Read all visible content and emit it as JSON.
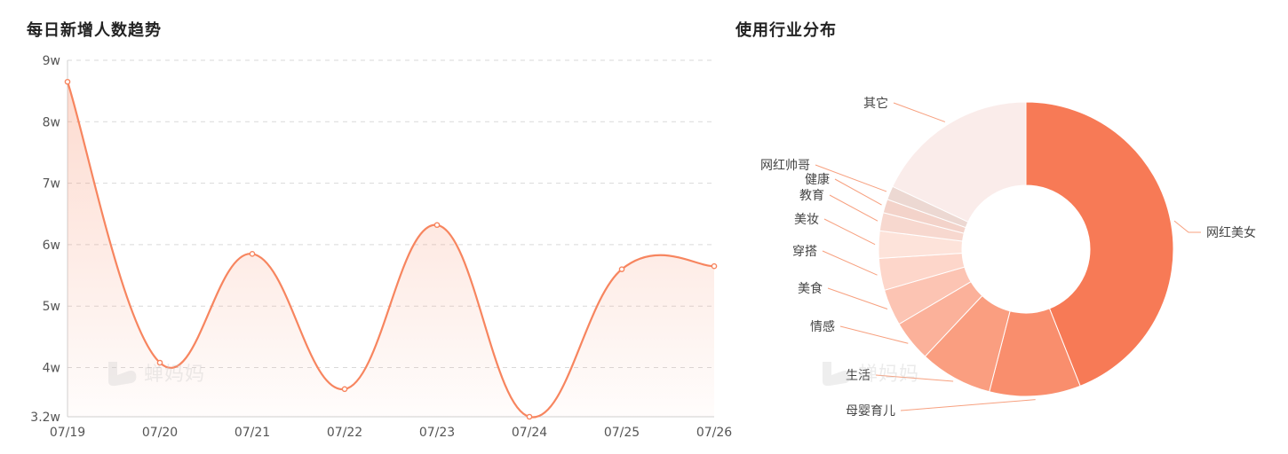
{
  "line_panel": {
    "title": "每日新增人数趋势"
  },
  "pie_panel": {
    "title": "使用行业分布"
  },
  "watermark": {
    "text": "蝉妈妈"
  },
  "colors": {
    "line": "#f7855f",
    "pie_main": "#f77a56",
    "label_line": "#f7a07f"
  },
  "chart_data": [
    {
      "type": "area",
      "title": "每日新增人数趋势",
      "categories": [
        "07/19",
        "07/20",
        "07/21",
        "07/22",
        "07/23",
        "07/24",
        "07/25",
        "07/26"
      ],
      "y_ticks": [
        "9w",
        "8w",
        "7w",
        "6w",
        "5w",
        "4w",
        "3.2w"
      ],
      "y_tick_values": [
        90000,
        80000,
        70000,
        60000,
        50000,
        40000,
        32000
      ],
      "ylim": [
        32000,
        90000
      ],
      "series": [
        {
          "values": [
            86500,
            40800,
            58500,
            36500,
            63200,
            32000,
            56000,
            56500
          ]
        }
      ],
      "grid": true
    },
    {
      "type": "pie",
      "title": "使用行业分布",
      "donut": true,
      "labels": [
        "网红美女",
        "母婴育儿",
        "生活",
        "情感",
        "美食",
        "穿搭",
        "美妆",
        "教育",
        "健康",
        "网红帅哥",
        "其它"
      ],
      "values": [
        44,
        10,
        8,
        4.5,
        4,
        3.5,
        3,
        2,
        1.5,
        1.5,
        18
      ],
      "colors": [
        "#f77a56",
        "#f98e6d",
        "#fa9e80",
        "#fbb19a",
        "#fcc4b3",
        "#fdd6ca",
        "#fde3da",
        "#f7d8cf",
        "#f3d3ca",
        "#ecd8d2",
        "#faecea"
      ]
    }
  ]
}
